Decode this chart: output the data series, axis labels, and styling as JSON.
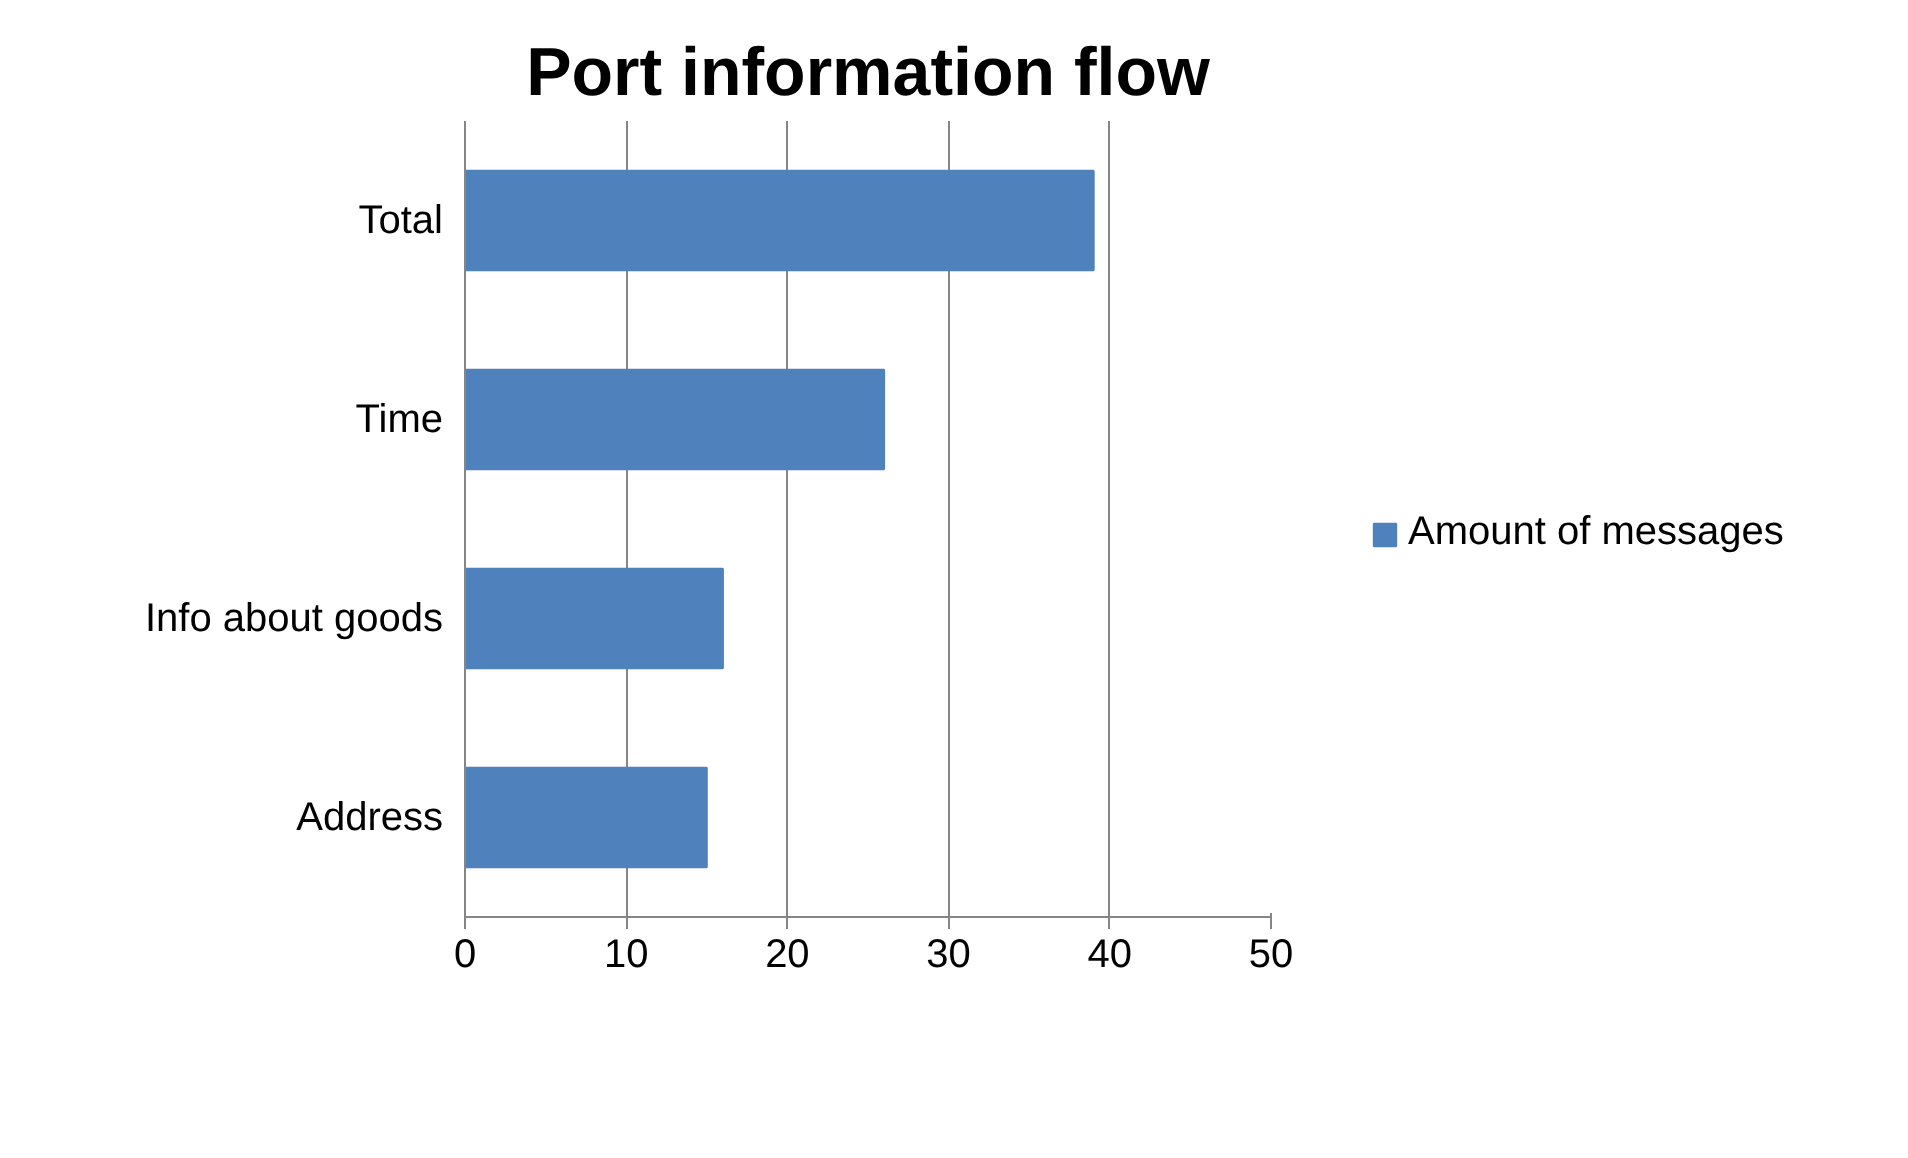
{
  "chart_data": {
    "type": "bar",
    "orientation": "horizontal",
    "title": "Port information flow",
    "categories": [
      "Total",
      "Time",
      "Info about goods",
      "Address"
    ],
    "series": [
      {
        "name": "Amount of messages",
        "color": "#4f81bd",
        "values": [
          39,
          26,
          16,
          15
        ]
      }
    ],
    "xlim": [
      0,
      50
    ],
    "xticks": [
      0,
      10,
      20,
      30,
      40,
      50
    ],
    "grid": "x",
    "legend": "right"
  }
}
